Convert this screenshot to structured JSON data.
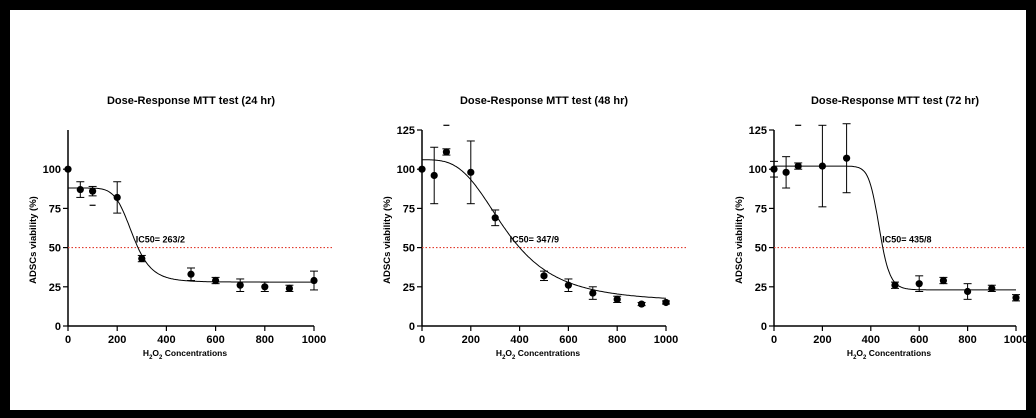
{
  "chart_data": [
    {
      "type": "scatter",
      "title": "Dose-Response MTT test (24 hr)",
      "ylabel": "ADSCs viability (%)",
      "xlabel": {
        "pre": "H",
        "s1": "2",
        "mid": "O",
        "s2": "2",
        "post": " Concentrations"
      },
      "xlim": [
        0,
        1000
      ],
      "ylim": [
        0,
        125
      ],
      "xticks": [
        0,
        200,
        400,
        600,
        800,
        1000
      ],
      "yticks": [
        0,
        25,
        50,
        75,
        100
      ],
      "points": [
        {
          "x": 0,
          "y": 100,
          "err": 0
        },
        {
          "x": 50,
          "y": 87,
          "err": 5
        },
        {
          "x": 100,
          "y": 86,
          "err": 3
        },
        {
          "x": 200,
          "y": 82,
          "err": 10
        },
        {
          "x": 300,
          "y": 43,
          "err": 2
        },
        {
          "x": 500,
          "y": 33,
          "err": 4
        },
        {
          "x": 600,
          "y": 29,
          "err": 2
        },
        {
          "x": 700,
          "y": 26,
          "err": 4
        },
        {
          "x": 800,
          "y": 25,
          "err": 3
        },
        {
          "x": 900,
          "y": 24,
          "err": 2
        },
        {
          "x": 1000,
          "y": 29,
          "err": 6
        }
      ],
      "stray_marks": [
        {
          "x": 100,
          "y": 77
        }
      ],
      "fit": {
        "top": 88,
        "bottom": 28,
        "ic50": 263,
        "hill": 7
      },
      "reference_line": 50,
      "annotation": "IC50= 263/2"
    },
    {
      "type": "scatter",
      "title": "Dose-Response MTT test (48 hr)",
      "ylabel": "ADSCs viability (%)",
      "xlabel": {
        "pre": "H",
        "s1": "2",
        "mid": "O",
        "s2": "2",
        "post": " Concentrations"
      },
      "xlim": [
        0,
        1000
      ],
      "ylim": [
        0,
        125
      ],
      "xticks": [
        0,
        200,
        400,
        600,
        800,
        1000
      ],
      "yticks": [
        0,
        25,
        50,
        75,
        100,
        125
      ],
      "points": [
        {
          "x": 0,
          "y": 100,
          "err": 0
        },
        {
          "x": 50,
          "y": 96,
          "err": 18
        },
        {
          "x": 100,
          "y": 111,
          "err": 2
        },
        {
          "x": 200,
          "y": 98,
          "err": 20
        },
        {
          "x": 300,
          "y": 69,
          "err": 5
        },
        {
          "x": 500,
          "y": 32,
          "err": 3
        },
        {
          "x": 600,
          "y": 26,
          "err": 4
        },
        {
          "x": 700,
          "y": 21,
          "err": 4
        },
        {
          "x": 800,
          "y": 17,
          "err": 2
        },
        {
          "x": 900,
          "y": 14,
          "err": 1
        },
        {
          "x": 1000,
          "y": 15,
          "err": 1
        }
      ],
      "stray_marks": [
        {
          "x": 100,
          "y": 128
        }
      ],
      "fit": {
        "top": 106,
        "bottom": 15,
        "ic50": 347,
        "hill": 3.3
      },
      "reference_line": 50,
      "annotation": "IC50= 347/9"
    },
    {
      "type": "scatter",
      "title": "Dose-Response MTT test (72 hr)",
      "ylabel": "ADSCs viability (%)",
      "xlabel": {
        "pre": "H",
        "s1": "2",
        "mid": "O",
        "s2": "2",
        "post": " Concentrations"
      },
      "xlim": [
        0,
        1000
      ],
      "ylim": [
        0,
        125
      ],
      "xticks": [
        0,
        200,
        400,
        600,
        800,
        1000
      ],
      "yticks": [
        0,
        25,
        50,
        75,
        100,
        125
      ],
      "points": [
        {
          "x": 0,
          "y": 100,
          "err": 5
        },
        {
          "x": 50,
          "y": 98,
          "err": 10
        },
        {
          "x": 100,
          "y": 102,
          "err": 2
        },
        {
          "x": 200,
          "y": 102,
          "err": 26
        },
        {
          "x": 300,
          "y": 107,
          "err": 22
        },
        {
          "x": 500,
          "y": 26,
          "err": 2
        },
        {
          "x": 600,
          "y": 27,
          "err": 5
        },
        {
          "x": 700,
          "y": 29,
          "err": 2
        },
        {
          "x": 800,
          "y": 22,
          "err": 5
        },
        {
          "x": 900,
          "y": 24,
          "err": 2
        },
        {
          "x": 1000,
          "y": 18,
          "err": 2
        }
      ],
      "stray_marks": [
        {
          "x": 100,
          "y": 128
        }
      ],
      "fit": {
        "top": 102,
        "bottom": 23,
        "ic50": 435,
        "hill": 20
      },
      "reference_line": 50,
      "annotation": "IC50= 435/8"
    }
  ]
}
